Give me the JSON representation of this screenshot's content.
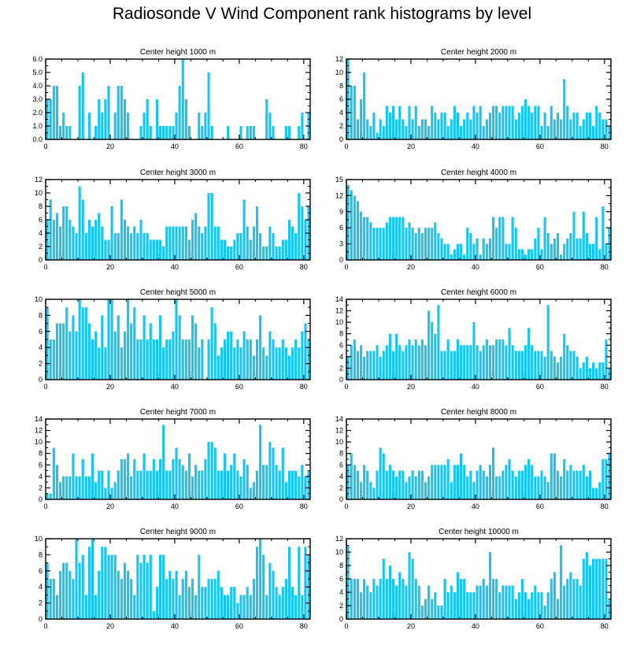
{
  "title": "Radiosonde V Wind Component rank histograms by level",
  "bar_color": "#17c4f2",
  "chart_data": [
    {
      "type": "bar",
      "title": "Center height 1000 m",
      "xlim": [
        0,
        82
      ],
      "ylim": [
        0,
        6
      ],
      "xticks": [
        0,
        20,
        40,
        60,
        80
      ],
      "yticks": [
        0,
        1,
        2,
        3,
        4,
        5,
        6
      ],
      "ytick_labels": [
        "0.0",
        "1.0",
        "2.0",
        "3.0",
        "4.0",
        "5.0",
        "6.0"
      ],
      "values": [
        3,
        3,
        4,
        4,
        1,
        2,
        1,
        1,
        0,
        0,
        4,
        5,
        0,
        2,
        0,
        1,
        3,
        2,
        3,
        4,
        0,
        2,
        4,
        4,
        3,
        2,
        0,
        0,
        0,
        1,
        2,
        3,
        1,
        0,
        3,
        1,
        1,
        1,
        1,
        1,
        2,
        4,
        6,
        3,
        1,
        0,
        0,
        2,
        1,
        2,
        5,
        1,
        0,
        0,
        0,
        0,
        1,
        0,
        0,
        0,
        1,
        0,
        1,
        1,
        1,
        0,
        0,
        0,
        3,
        2,
        1,
        0,
        0,
        0,
        1,
        1,
        0,
        0,
        1,
        2,
        0,
        2
      ]
    },
    {
      "type": "bar",
      "title": "Center height 2000 m",
      "xlim": [
        0,
        82
      ],
      "ylim": [
        0,
        12
      ],
      "xticks": [
        0,
        20,
        40,
        60,
        80
      ],
      "yticks": [
        0,
        2,
        4,
        6,
        8,
        10,
        12
      ],
      "ytick_labels": [
        "0",
        "2",
        "4",
        "6",
        "8",
        "10",
        "12"
      ],
      "values": [
        12,
        8,
        8,
        3,
        6,
        10,
        3,
        2,
        4,
        1,
        3,
        2,
        5,
        4,
        5,
        3,
        5,
        3,
        2,
        5,
        3,
        5,
        2,
        3,
        3,
        2,
        5,
        4,
        3,
        4,
        4,
        2,
        3,
        5,
        4,
        2,
        3,
        4,
        3,
        5,
        4,
        5,
        2,
        3,
        4,
        5,
        5,
        4,
        5,
        5,
        5,
        5,
        3,
        4,
        5,
        6,
        5,
        4,
        5,
        5,
        2,
        4,
        2,
        5,
        3,
        4,
        3,
        9,
        5,
        3,
        4,
        4,
        2,
        3,
        4,
        4,
        2,
        5,
        4,
        3,
        3,
        2
      ]
    },
    {
      "type": "bar",
      "title": "Center height 3000 m",
      "xlim": [
        0,
        82
      ],
      "ylim": [
        0,
        12
      ],
      "xticks": [
        0,
        20,
        40,
        60,
        80
      ],
      "yticks": [
        0,
        2,
        4,
        6,
        8,
        10,
        12
      ],
      "ytick_labels": [
        "0",
        "2",
        "4",
        "6",
        "8",
        "10",
        "12"
      ],
      "values": [
        6,
        9,
        6,
        7,
        5,
        8,
        8,
        6,
        5,
        4,
        11,
        9,
        4,
        6,
        5,
        6,
        7,
        5,
        3,
        3,
        8,
        4,
        4,
        9,
        6,
        5,
        4,
        5,
        4,
        6,
        4,
        4,
        3,
        3,
        3,
        3,
        2,
        5,
        5,
        5,
        5,
        5,
        5,
        5,
        3,
        6,
        7,
        5,
        4,
        5,
        10,
        10,
        5,
        5,
        3,
        3,
        2,
        2,
        3,
        4,
        4,
        9,
        5,
        3,
        5,
        8,
        4,
        2,
        2,
        5,
        4,
        2,
        2,
        3,
        3,
        6,
        5,
        4,
        10,
        8,
        6,
        8
      ]
    },
    {
      "type": "bar",
      "title": "Center height 4000 m",
      "xlim": [
        0,
        82
      ],
      "ylim": [
        0,
        15
      ],
      "xticks": [
        0,
        20,
        40,
        60,
        80
      ],
      "yticks": [
        0,
        3,
        6,
        9,
        12,
        15
      ],
      "ytick_labels": [
        "0",
        "3",
        "6",
        "9",
        "12",
        "15"
      ],
      "values": [
        14,
        13,
        12,
        11,
        9,
        8,
        8,
        7,
        6,
        6,
        6,
        6,
        7,
        8,
        8,
        8,
        8,
        8,
        6,
        7,
        6,
        5,
        6,
        5,
        6,
        6,
        6,
        7,
        5,
        4,
        3,
        3,
        1,
        2,
        3,
        3,
        1,
        6,
        5,
        3,
        4,
        1,
        4,
        3,
        4,
        8,
        6,
        8,
        8,
        3,
        3,
        8,
        6,
        2,
        2,
        1,
        2,
        2,
        4,
        6,
        2,
        8,
        5,
        3,
        4,
        5,
        1,
        3,
        4,
        5,
        9,
        4,
        4,
        9,
        5,
        3,
        3,
        8,
        2,
        10,
        3,
        6
      ]
    },
    {
      "type": "bar",
      "title": "Center height 5000 m",
      "xlim": [
        0,
        82
      ],
      "ylim": [
        0,
        10
      ],
      "xticks": [
        0,
        20,
        40,
        60,
        80
      ],
      "yticks": [
        0,
        2,
        4,
        6,
        8,
        10
      ],
      "ytick_labels": [
        "0",
        "2",
        "4",
        "6",
        "8",
        "10"
      ],
      "values": [
        9,
        5,
        5,
        7,
        7,
        7,
        9,
        6,
        8,
        6,
        10,
        9,
        9,
        7,
        5,
        6,
        4,
        8,
        4,
        10,
        10,
        6,
        8,
        4,
        6,
        10,
        7,
        9,
        5,
        5,
        8,
        5,
        7,
        5,
        5,
        8,
        4,
        5,
        5,
        6,
        10,
        8,
        5,
        5,
        5,
        8,
        7,
        4,
        5,
        0,
        5,
        9,
        7,
        3,
        4,
        5,
        6,
        6,
        4,
        5,
        4,
        6,
        5,
        5,
        3,
        5,
        8,
        4,
        3,
        6,
        5,
        4,
        4,
        5,
        4,
        3,
        4,
        5,
        4,
        6,
        7,
        5
      ]
    },
    {
      "type": "bar",
      "title": "Center height 6000 m",
      "xlim": [
        0,
        82
      ],
      "ylim": [
        0,
        14
      ],
      "xticks": [
        0,
        20,
        40,
        60,
        80
      ],
      "yticks": [
        0,
        2,
        4,
        6,
        8,
        10,
        12,
        14
      ],
      "ytick_labels": [
        "0",
        "2",
        "4",
        "6",
        "8",
        "10",
        "12",
        "14"
      ],
      "values": [
        4,
        6,
        7,
        5,
        6,
        4,
        5,
        5,
        5,
        6,
        4,
        5,
        6,
        8,
        5,
        8,
        6,
        5,
        6,
        7,
        6,
        7,
        6,
        7,
        6,
        12,
        10,
        8,
        13,
        5,
        5,
        7,
        5,
        5,
        7,
        6,
        6,
        6,
        6,
        10,
        6,
        5,
        6,
        7,
        6,
        6,
        7,
        7,
        7,
        6,
        9,
        6,
        5,
        5,
        5,
        6,
        9,
        6,
        5,
        5,
        5,
        4,
        13,
        5,
        4,
        3,
        4,
        8,
        6,
        5,
        5,
        4,
        2,
        3,
        4,
        2,
        3,
        2,
        3,
        3,
        7,
        2
      ]
    },
    {
      "type": "bar",
      "title": "Center height 7000 m",
      "xlim": [
        0,
        82
      ],
      "ylim": [
        0,
        14
      ],
      "xticks": [
        0,
        20,
        40,
        60,
        80
      ],
      "yticks": [
        0,
        2,
        4,
        6,
        8,
        10,
        12,
        14
      ],
      "ytick_labels": [
        "0",
        "2",
        "4",
        "6",
        "8",
        "10",
        "12",
        "14"
      ],
      "values": [
        1,
        1,
        9,
        6,
        3,
        4,
        4,
        4,
        8,
        4,
        4,
        7,
        4,
        4,
        8,
        3,
        5,
        5,
        2,
        5,
        2,
        3,
        5,
        7,
        7,
        8,
        4,
        7,
        5,
        5,
        8,
        5,
        5,
        7,
        5,
        7,
        13,
        5,
        5,
        7,
        9,
        7,
        6,
        5,
        8,
        4,
        6,
        5,
        5,
        7,
        10,
        10,
        9,
        5,
        5,
        8,
        5,
        6,
        8,
        5,
        4,
        7,
        6,
        2,
        3,
        5,
        13,
        6,
        6,
        10,
        9,
        6,
        5,
        9,
        3,
        5,
        5,
        5,
        4,
        6,
        4,
        5
      ]
    },
    {
      "type": "bar",
      "title": "Center height 8000 m",
      "xlim": [
        0,
        82
      ],
      "ylim": [
        0,
        14
      ],
      "xticks": [
        0,
        20,
        40,
        60,
        80
      ],
      "yticks": [
        0,
        2,
        4,
        6,
        8,
        10,
        12,
        14
      ],
      "ytick_labels": [
        "0",
        "2",
        "4",
        "6",
        "8",
        "10",
        "12",
        "14"
      ],
      "values": [
        6,
        8,
        6,
        5,
        3,
        6,
        5,
        3,
        2,
        5,
        9,
        8,
        5,
        6,
        5,
        4,
        5,
        5,
        3,
        4,
        5,
        4,
        5,
        5,
        3,
        4,
        6,
        6,
        6,
        6,
        6,
        7,
        3,
        6,
        6,
        8,
        6,
        4,
        5,
        3,
        5,
        6,
        5,
        4,
        6,
        9,
        4,
        4,
        5,
        6,
        7,
        5,
        4,
        5,
        5,
        6,
        7,
        6,
        4,
        4,
        5,
        4,
        3,
        8,
        8,
        5,
        4,
        7,
        5,
        6,
        5,
        5,
        5,
        6,
        4,
        5,
        2,
        2,
        3,
        7,
        7,
        8
      ]
    },
    {
      "type": "bar",
      "title": "Center height 9000 m",
      "xlim": [
        0,
        82
      ],
      "ylim": [
        0,
        10
      ],
      "xticks": [
        0,
        20,
        40,
        60,
        80
      ],
      "yticks": [
        0,
        2,
        4,
        6,
        8,
        10
      ],
      "ytick_labels": [
        "0",
        "2",
        "4",
        "6",
        "8",
        "10"
      ],
      "values": [
        7,
        5,
        5,
        3,
        6,
        7,
        7,
        6,
        5,
        10,
        7,
        8,
        3,
        9,
        10,
        3,
        6,
        9,
        9,
        8,
        8,
        8,
        6,
        5,
        7,
        6,
        5,
        3,
        8,
        7,
        8,
        7,
        8,
        1,
        4,
        8,
        8,
        5,
        6,
        5,
        6,
        3,
        5,
        6,
        4,
        5,
        3,
        8,
        4,
        4,
        5,
        5,
        5,
        6,
        4,
        3,
        3,
        4,
        4,
        2,
        3,
        3,
        4,
        3,
        5,
        9,
        10,
        8,
        3,
        7,
        6,
        4,
        3,
        4,
        5,
        9,
        4,
        3,
        9,
        3,
        9,
        8
      ]
    },
    {
      "type": "bar",
      "title": "Center height 10000 m",
      "xlim": [
        0,
        82
      ],
      "ylim": [
        0,
        12
      ],
      "xticks": [
        0,
        20,
        40,
        60,
        80
      ],
      "yticks": [
        0,
        2,
        4,
        6,
        8,
        10,
        12
      ],
      "ytick_labels": [
        "0",
        "2",
        "4",
        "6",
        "8",
        "10",
        "12"
      ],
      "values": [
        11,
        6,
        6,
        6,
        4,
        6,
        5,
        4,
        6,
        5,
        6,
        9,
        6,
        8,
        6,
        5,
        7,
        6,
        5,
        10,
        9,
        6,
        5,
        2,
        3,
        5,
        3,
        4,
        2,
        2,
        6,
        4,
        5,
        4,
        7,
        6,
        6,
        4,
        4,
        4,
        5,
        5,
        6,
        5,
        10,
        6,
        6,
        4,
        5,
        5,
        5,
        5,
        3,
        4,
        6,
        4,
        3,
        4,
        5,
        4,
        4,
        2,
        4,
        6,
        7,
        3,
        11,
        5,
        6,
        7,
        6,
        6,
        5,
        9,
        10,
        8,
        9,
        9,
        9,
        9,
        9,
        3
      ]
    }
  ]
}
